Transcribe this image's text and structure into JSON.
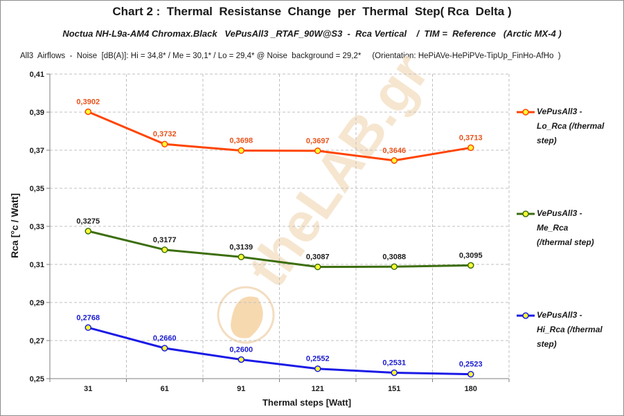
{
  "chart_data": {
    "type": "line",
    "title": "Chart 2 :  Thermal  Resistanse  Change  per  Thermal  Step( Rca  Delta )",
    "subtitle": "Noctua NH-L9a-AM4 Chromax.Black   VePusAll3 _RTAF_90W@S3  -  Rca Vertical    /  TIM =  Reference   (Arctic MX-4 )",
    "noise_line": "All3  Airflows  -  Noise  [dB(A)]: Hi = 34,8* / Me = 30,1* / Lo = 29,4* @ Noise  background = 29,2*     (Orientation: HePiAVe-HePiPVe-TipUp_FinHo-AfHo  )",
    "xlabel": "Thermal steps  [Watt]",
    "ylabel": "Rca   [°c / Watt]",
    "categories": [
      "31",
      "61",
      "91",
      "121",
      "151",
      "180"
    ],
    "ylim": [
      0.25,
      0.41
    ],
    "yticks": [
      0.25,
      0.27,
      0.29,
      0.31,
      0.33,
      0.35,
      0.37,
      0.39,
      0.41
    ],
    "ytick_labels": [
      "0,25",
      "0,27",
      "0,29",
      "0,31",
      "0,33",
      "0,35",
      "0,37",
      "0,39",
      "0,41"
    ],
    "grid": true,
    "legend_position": "right",
    "watermark": "theLAB.gr",
    "series": [
      {
        "name": "VePusAll3 - Lo_Rca (/thermal step)",
        "legend_lines": [
          "VePusAll3 -",
          "Lo_Rca (/thermal",
          "step)"
        ],
        "color": "#ff4400",
        "label_color": "#e8521a",
        "values": [
          0.3902,
          0.3732,
          0.3698,
          0.3697,
          0.3646,
          0.3713
        ],
        "labels": [
          "0,3902",
          "0,3732",
          "0,3698",
          "0,3697",
          "0,3646",
          "0,3713"
        ]
      },
      {
        "name": "VePusAll3 - Me_Rca (/thermal step)",
        "legend_lines": [
          "VePusAll3 -",
          "Me_Rca",
          "(/thermal step)"
        ],
        "color": "#3c6e0e",
        "label_color": "#1a1a1a",
        "values": [
          0.3275,
          0.3177,
          0.3139,
          0.3087,
          0.3088,
          0.3095
        ],
        "labels": [
          "0,3275",
          "0,3177",
          "0,3139",
          "0,3087",
          "0,3088",
          "0,3095"
        ]
      },
      {
        "name": "VePusAll3 - Hi_Rca (/thermal step)",
        "legend_lines": [
          "VePusAll3 -",
          "Hi_Rca (/thermal",
          "step)"
        ],
        "color": "#1a1ae6",
        "label_color": "#1a1ad0",
        "values": [
          0.2768,
          0.266,
          0.26,
          0.2552,
          0.2531,
          0.2523
        ],
        "labels": [
          "0,2768",
          "0,2660",
          "0,2600",
          "0,2552",
          "0,2531",
          "0,2523"
        ]
      }
    ]
  },
  "marker_fill": "#ffff33"
}
